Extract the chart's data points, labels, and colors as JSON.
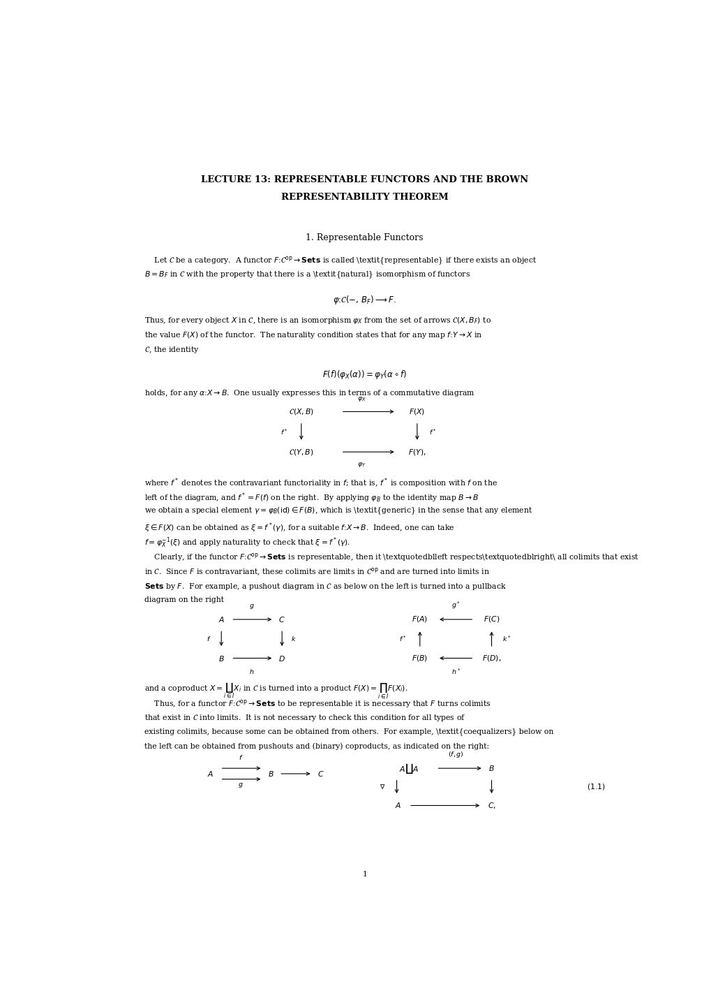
{
  "background_color": "#ffffff",
  "page_width": 10.2,
  "page_height": 14.42,
  "title_line1": "LECTURE 13: REPRESENTABLE FUNCTORS AND THE BROWN",
  "title_line2": "REPRESENTABILITY THEOREM",
  "section_title": "1. Representable Functors",
  "page_number": "1"
}
